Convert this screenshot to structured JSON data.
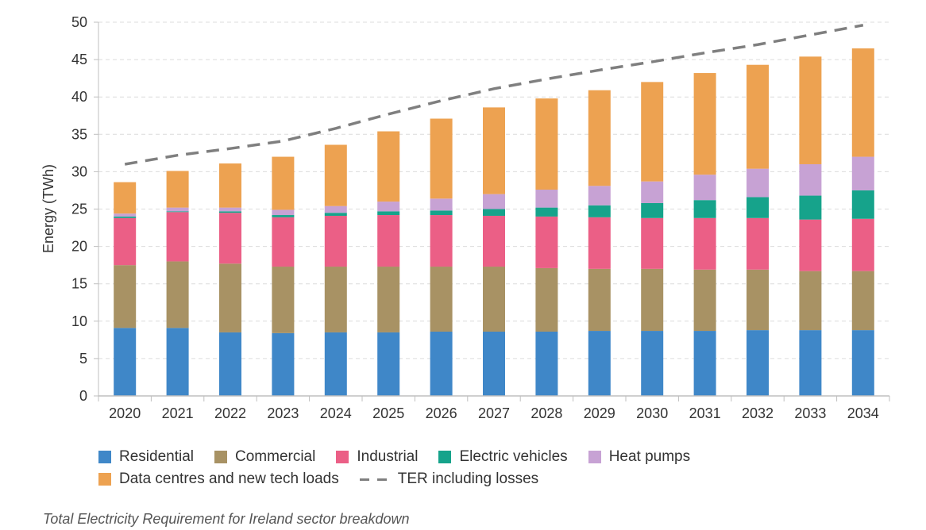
{
  "chart_data": {
    "type": "bar",
    "stacked": true,
    "title": "",
    "xlabel": "",
    "ylabel": "Energy (TWh)",
    "ylim": [
      0,
      50
    ],
    "yticks": [
      0,
      5,
      10,
      15,
      20,
      25,
      30,
      35,
      40,
      45,
      50
    ],
    "grid": true,
    "legend_position": "bottom",
    "categories": [
      "2020",
      "2021",
      "2022",
      "2023",
      "2024",
      "2025",
      "2026",
      "2027",
      "2028",
      "2029",
      "2030",
      "2031",
      "2032",
      "2033",
      "2034"
    ],
    "series": [
      {
        "name": "Residential",
        "color": "#3f87c8",
        "values": [
          9.1,
          9.1,
          8.5,
          8.4,
          8.5,
          8.5,
          8.6,
          8.6,
          8.6,
          8.7,
          8.7,
          8.7,
          8.8,
          8.8,
          8.8
        ]
      },
      {
        "name": "Commercial",
        "color": "#a89264",
        "values": [
          8.4,
          8.9,
          9.2,
          8.9,
          8.8,
          8.8,
          8.7,
          8.7,
          8.5,
          8.3,
          8.3,
          8.2,
          8.1,
          7.9,
          7.9
        ]
      },
      {
        "name": "Industrial",
        "color": "#eb5f86",
        "values": [
          6.3,
          6.6,
          6.8,
          6.6,
          6.8,
          6.9,
          6.9,
          6.8,
          6.9,
          6.9,
          6.8,
          6.9,
          6.9,
          6.9,
          7.0
        ]
      },
      {
        "name": "Electric vehicles",
        "color": "#16a38b",
        "values": [
          0.2,
          0.1,
          0.2,
          0.3,
          0.4,
          0.5,
          0.6,
          0.9,
          1.2,
          1.6,
          2.0,
          2.4,
          2.8,
          3.2,
          3.8
        ]
      },
      {
        "name": "Heat pumps",
        "color": "#c7a2d4",
        "values": [
          0.4,
          0.5,
          0.5,
          0.7,
          0.9,
          1.3,
          1.6,
          2.0,
          2.4,
          2.6,
          2.9,
          3.4,
          3.8,
          4.2,
          4.5
        ]
      },
      {
        "name": "Data centres and new tech loads",
        "color": "#eda251",
        "values": [
          4.2,
          4.9,
          5.9,
          7.1,
          8.2,
          9.4,
          10.7,
          11.6,
          12.2,
          12.8,
          13.3,
          13.6,
          13.9,
          14.4,
          14.5
        ]
      }
    ],
    "lines": [
      {
        "name": "TER including losses",
        "color": "#7f7f7f",
        "style": "dashed",
        "values": [
          31.0,
          32.2,
          33.1,
          34.1,
          35.8,
          37.7,
          39.5,
          41.1,
          42.4,
          43.6,
          44.7,
          45.9,
          47.0,
          48.3,
          49.6
        ]
      }
    ]
  },
  "legend": {
    "row1": [
      "Residential",
      "Commercial",
      "Industrial",
      "Electric vehicles",
      "Heat pumps"
    ],
    "row2": [
      "Data centres and new tech loads",
      "TER including losses"
    ]
  },
  "caption": "Total Electricity Requirement for Ireland sector breakdown"
}
